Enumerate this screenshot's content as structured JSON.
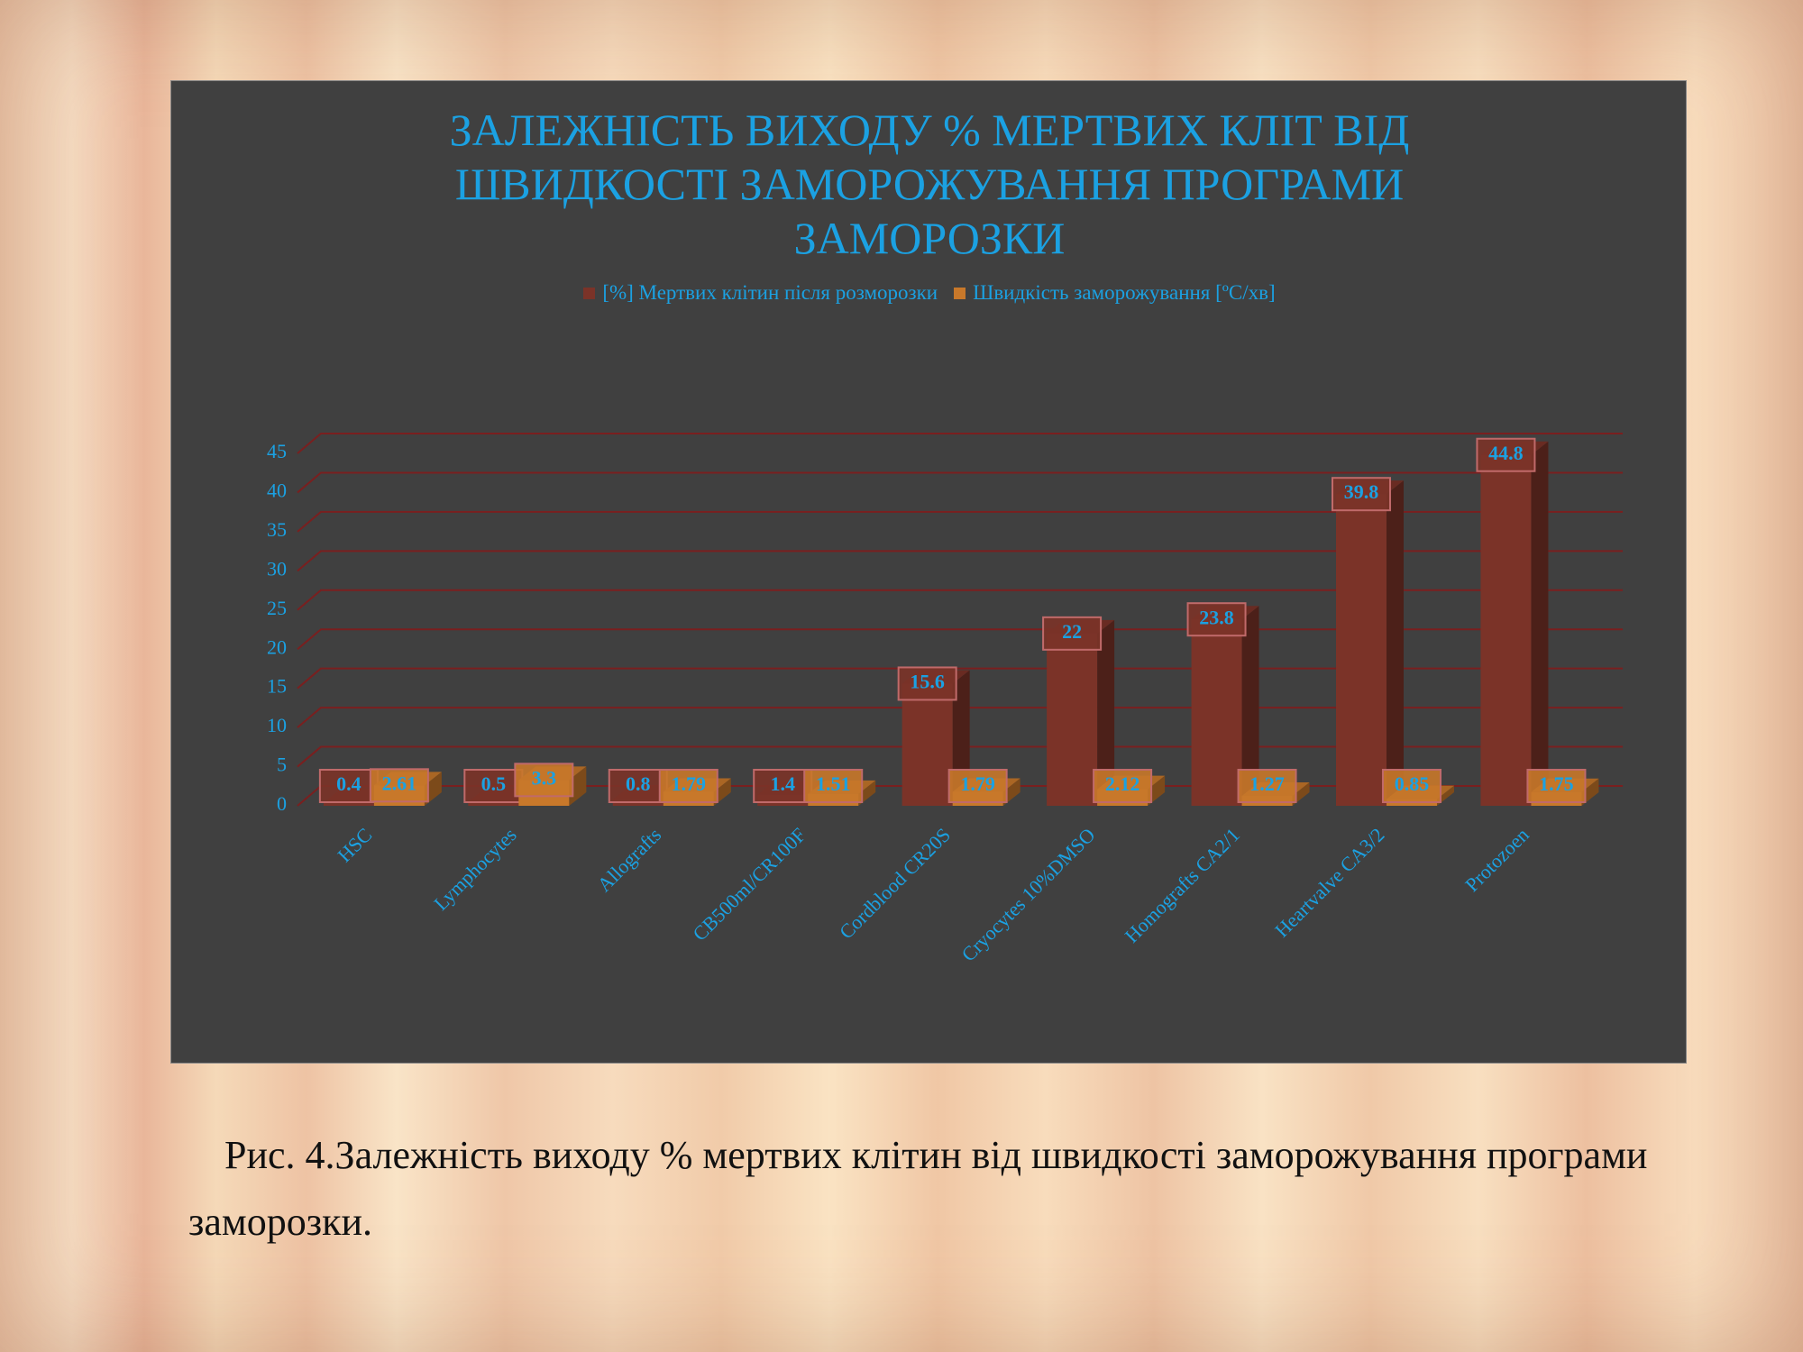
{
  "chart_data": {
    "type": "bar",
    "title": "ЗАЛЕЖНІСТЬ ВИХОДУ % МЕРТВИХ КЛІТ ВІД ШВИДКОСТІ ЗАМОРОЖУВАННЯ ПРОГРАМИ ЗАМОРОЗКИ",
    "categories": [
      "HSC",
      "Lymphocytes",
      "Allografts",
      "CB500ml/CR100F",
      "Cordblood CR20S",
      "Cryocytes 10%DMSO",
      "Homografts CA2/1",
      "Heartvalve CA3/2",
      "Protozoen"
    ],
    "series": [
      {
        "name": "[%] Мертвих клітин після розморозки",
        "color": "#7b3328",
        "values": [
          0.4,
          0.5,
          0.8,
          1.4,
          15.6,
          22,
          23.8,
          39.8,
          44.8
        ]
      },
      {
        "name": "Швидкість заморожування  [ºC/хв]",
        "color": "#c8782a",
        "values": [
          2.61,
          3.3,
          1.79,
          1.51,
          1.79,
          2.12,
          1.27,
          0.85,
          1.75
        ]
      }
    ],
    "ylim": [
      0,
      45
    ],
    "yticks": [
      0,
      5,
      10,
      15,
      20,
      25,
      30,
      35,
      40,
      45
    ],
    "grid": true
  },
  "caption": "Рис. 4.Залежність виходу % мертвих клітин від швидкості заморожування програми заморозки."
}
